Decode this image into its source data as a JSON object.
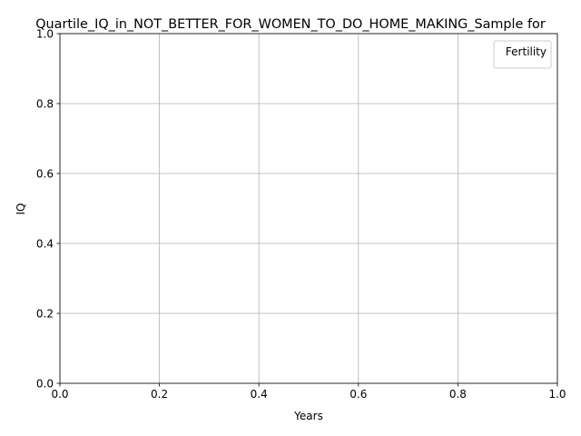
{
  "chart_data": {
    "type": "line",
    "title": "Quartile_IQ_in_NOT_BETTER_FOR_WOMEN_TO_DO_HOME_MAKING_Sample for",
    "xlabel": "Years",
    "ylabel": "IQ",
    "xlim": [
      0.0,
      1.0
    ],
    "ylim": [
      0.0,
      1.0
    ],
    "xticks": [
      "0.0",
      "0.2",
      "0.4",
      "0.6",
      "0.8",
      "1.0"
    ],
    "yticks": [
      "0.0",
      "0.2",
      "0.4",
      "0.6",
      "0.8",
      "1.0"
    ],
    "grid": true,
    "legend": {
      "title": "Fertility",
      "placement": "top-right",
      "entries": []
    },
    "series": []
  }
}
